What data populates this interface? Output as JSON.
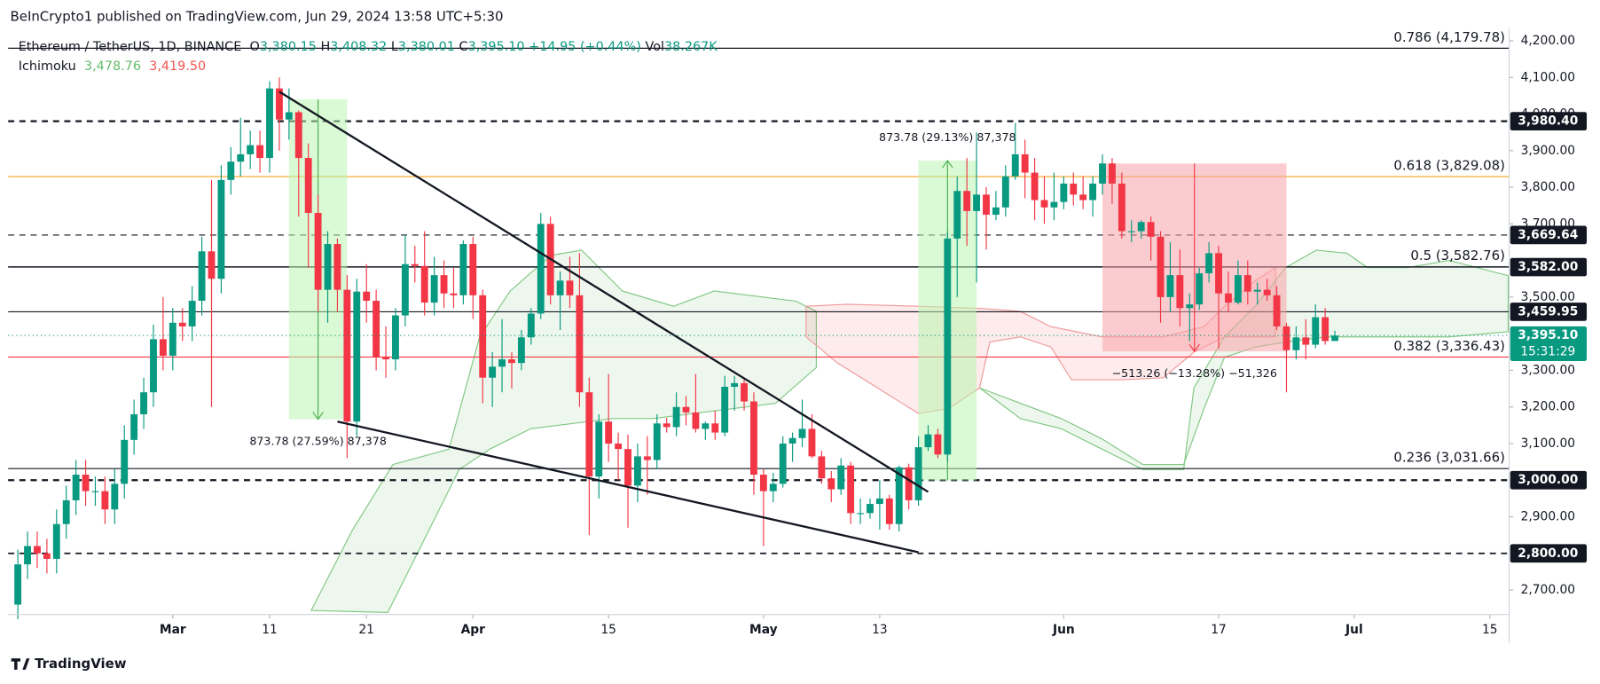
{
  "header": {
    "text": "BeInCrypto1 published on TradingView.com, Jun 29, 2024 13:58 UTC+5:30"
  },
  "footer": {
    "brand": "TradingView"
  },
  "legend": {
    "symbol": "Ethereum / TetherUS, 1D, BINANCE",
    "items": [
      {
        "key": "O",
        "value": "3,380.15"
      },
      {
        "key": "H",
        "value": "3,408.32"
      },
      {
        "key": "L",
        "value": "3,380.01"
      },
      {
        "key": "C",
        "value": "3,395.10"
      }
    ],
    "change": "+14.95 (+0.44%)",
    "vol_key": "Vol",
    "vol": "38.267K",
    "indicator": "Ichimoku",
    "indicator_values": [
      {
        "value": "3,478.76",
        "color": "#66bb6a"
      },
      {
        "value": "3,419.50",
        "color": "#ef5350"
      }
    ]
  },
  "chart_data": {
    "type": "candlestick",
    "up_color": "#089981",
    "down_color": "#f23645",
    "x": [
      "2024-02-14",
      "2024-02-15",
      "2024-02-16",
      "2024-02-17",
      "2024-02-18",
      "2024-02-19",
      "2024-02-20",
      "2024-02-21",
      "2024-02-22",
      "2024-02-23",
      "2024-02-24",
      "2024-02-25",
      "2024-02-26",
      "2024-02-27",
      "2024-02-28",
      "2024-02-29",
      "2024-03-01",
      "2024-03-02",
      "2024-03-03",
      "2024-03-04",
      "2024-03-05",
      "2024-03-06",
      "2024-03-07",
      "2024-03-08",
      "2024-03-09",
      "2024-03-10",
      "2024-03-11",
      "2024-03-12",
      "2024-03-13",
      "2024-03-14",
      "2024-03-15",
      "2024-03-16",
      "2024-03-17",
      "2024-03-18",
      "2024-03-19",
      "2024-03-20",
      "2024-03-21",
      "2024-03-22",
      "2024-03-23",
      "2024-03-24",
      "2024-03-25",
      "2024-03-26",
      "2024-03-27",
      "2024-03-28",
      "2024-03-29",
      "2024-03-30",
      "2024-03-31",
      "2024-04-01",
      "2024-04-02",
      "2024-04-03",
      "2024-04-04",
      "2024-04-05",
      "2024-04-06",
      "2024-04-07",
      "2024-04-08",
      "2024-04-09",
      "2024-04-10",
      "2024-04-11",
      "2024-04-12",
      "2024-04-13",
      "2024-04-14",
      "2024-04-15",
      "2024-04-16",
      "2024-04-17",
      "2024-04-18",
      "2024-04-19",
      "2024-04-20",
      "2024-04-21",
      "2024-04-22",
      "2024-04-23",
      "2024-04-24",
      "2024-04-25",
      "2024-04-26",
      "2024-04-27",
      "2024-04-28",
      "2024-04-29",
      "2024-04-30",
      "2024-05-01",
      "2024-05-02",
      "2024-05-03",
      "2024-05-04",
      "2024-05-05",
      "2024-05-06",
      "2024-05-07",
      "2024-05-08",
      "2024-05-09",
      "2024-05-10",
      "2024-05-11",
      "2024-05-12",
      "2024-05-13",
      "2024-05-14",
      "2024-05-15",
      "2024-05-16",
      "2024-05-17",
      "2024-05-18",
      "2024-05-19",
      "2024-05-20",
      "2024-05-21",
      "2024-05-22",
      "2024-05-23",
      "2024-05-24",
      "2024-05-25",
      "2024-05-26",
      "2024-05-27",
      "2024-05-28",
      "2024-05-29",
      "2024-05-30",
      "2024-05-31",
      "2024-06-01",
      "2024-06-02",
      "2024-06-03",
      "2024-06-04",
      "2024-06-05",
      "2024-06-06",
      "2024-06-07",
      "2024-06-08",
      "2024-06-09",
      "2024-06-10",
      "2024-06-11",
      "2024-06-12",
      "2024-06-13",
      "2024-06-14",
      "2024-06-15",
      "2024-06-16",
      "2024-06-17",
      "2024-06-18",
      "2024-06-19",
      "2024-06-20",
      "2024-06-21",
      "2024-06-22",
      "2024-06-23",
      "2024-06-24",
      "2024-06-25",
      "2024-06-26",
      "2024-06-27",
      "2024-06-28",
      "2024-06-29"
    ],
    "open": [
      2660,
      2770,
      2820,
      2800,
      2785,
      2880,
      2945,
      3015,
      2970,
      2970,
      2920,
      2990,
      3110,
      3180,
      3240,
      3385,
      3340,
      3430,
      3420,
      3490,
      3625,
      3550,
      3820,
      3870,
      3890,
      3915,
      3880,
      4070,
      3985,
      4005,
      3880,
      3730,
      3520,
      3645,
      3520,
      3160,
      3515,
      3490,
      3335,
      3330,
      3450,
      3590,
      3585,
      3485,
      3560,
      3510,
      3505,
      3645,
      3505,
      3280,
      3310,
      3330,
      3320,
      3390,
      3455,
      3700,
      3505,
      3545,
      3505,
      3240,
      3010,
      3160,
      3100,
      3085,
      2985,
      3065,
      3055,
      3155,
      3145,
      3200,
      3185,
      3140,
      3155,
      3130,
      3255,
      3265,
      3215,
      3015,
      2970,
      2990,
      3100,
      3115,
      3140,
      3065,
      3005,
      2975,
      3040,
      2910,
      2910,
      2935,
      2950,
      2880,
      3035,
      2945,
      3090,
      3125,
      3070,
      3660,
      3790,
      3735,
      3780,
      3725,
      3745,
      3830,
      3890,
      3840,
      3765,
      3745,
      3760,
      3810,
      3780,
      3765,
      3810,
      3865,
      3810,
      3680,
      3680,
      3705,
      3665,
      3500,
      3560,
      3470,
      3480,
      3565,
      3620,
      3510,
      3485,
      3560,
      3515,
      3520,
      3505,
      3420,
      3355,
      3390,
      3370,
      3445,
      3380.15
    ],
    "high": [
      2810,
      2860,
      2860,
      2840,
      2920,
      2985,
      3055,
      3055,
      3010,
      3010,
      3030,
      3150,
      3220,
      3280,
      3425,
      3500,
      3470,
      3470,
      3530,
      3665,
      3820,
      3860,
      3910,
      3990,
      3955,
      3955,
      4090,
      4100,
      4070,
      4010,
      3920,
      3780,
      3680,
      3660,
      3560,
      3550,
      3590,
      3520,
      3420,
      3470,
      3670,
      3640,
      3680,
      3610,
      3600,
      3580,
      3655,
      3665,
      3520,
      3350,
      3440,
      3350,
      3410,
      3470,
      3730,
      3720,
      3570,
      3610,
      3620,
      3280,
      3180,
      3290,
      3130,
      3125,
      3100,
      3120,
      3180,
      3170,
      3240,
      3230,
      3290,
      3160,
      3190,
      3285,
      3285,
      3275,
      3240,
      3030,
      3020,
      3120,
      3130,
      3220,
      3180,
      3080,
      3025,
      3060,
      3050,
      2950,
      2950,
      3000,
      2960,
      3040,
      3045,
      3120,
      3150,
      3140,
      3680,
      3830,
      3880,
      3950,
      3800,
      3790,
      3860,
      3975,
      3930,
      3880,
      3830,
      3840,
      3830,
      3840,
      3830,
      3830,
      3890,
      3880,
      3840,
      3710,
      3710,
      3720,
      3680,
      3650,
      3630,
      3510,
      3580,
      3650,
      3640,
      3570,
      3600,
      3600,
      3540,
      3550,
      3530,
      3430,
      3420,
      3440,
      3480,
      3470,
      3408.32
    ],
    "low": [
      2620,
      2730,
      2760,
      2745,
      2745,
      2840,
      2905,
      2930,
      2930,
      2880,
      2880,
      2950,
      3070,
      3140,
      3200,
      3300,
      3300,
      3380,
      3380,
      3450,
      3200,
      3510,
      3780,
      3830,
      3850,
      3840,
      3840,
      3900,
      3930,
      3720,
      3580,
      3460,
      3430,
      3460,
      3060,
      3120,
      3430,
      3300,
      3280,
      3300,
      3420,
      3540,
      3450,
      3450,
      3470,
      3470,
      3480,
      3440,
      3210,
      3200,
      3240,
      3250,
      3300,
      3370,
      3440,
      3480,
      3410,
      3470,
      3200,
      2850,
      2950,
      3050,
      3000,
      2870,
      2940,
      2960,
      3030,
      3130,
      3120,
      3150,
      3130,
      3110,
      3110,
      3120,
      3190,
      3190,
      2960,
      2820,
      2940,
      2980,
      3050,
      3090,
      3060,
      2990,
      2940,
      2960,
      2880,
      2880,
      2895,
      2865,
      2865,
      2860,
      2920,
      2930,
      3080,
      3060,
      3050,
      3500,
      3640,
      3540,
      3630,
      3710,
      3720,
      3820,
      3770,
      3710,
      3700,
      3710,
      3740,
      3750,
      3740,
      3720,
      3780,
      3755,
      3660,
      3650,
      3660,
      3600,
      3430,
      3460,
      3420,
      3380,
      3465,
      3540,
      3360,
      3460,
      3480,
      3480,
      3480,
      3490,
      3410,
      3240,
      3330,
      3330,
      3360,
      3370,
      3380.01
    ],
    "close": [
      2770,
      2820,
      2800,
      2785,
      2880,
      2945,
      3015,
      2970,
      2970,
      2920,
      2990,
      3110,
      3180,
      3240,
      3385,
      3340,
      3430,
      3420,
      3490,
      3625,
      3550,
      3820,
      3870,
      3890,
      3915,
      3880,
      4070,
      3985,
      4005,
      3880,
      3730,
      3520,
      3645,
      3520,
      3160,
      3515,
      3490,
      3335,
      3330,
      3450,
      3590,
      3585,
      3485,
      3560,
      3510,
      3505,
      3645,
      3505,
      3280,
      3310,
      3330,
      3320,
      3390,
      3455,
      3700,
      3505,
      3545,
      3505,
      3240,
      3010,
      3160,
      3100,
      3085,
      2985,
      3065,
      3055,
      3155,
      3145,
      3200,
      3185,
      3140,
      3155,
      3130,
      3255,
      3265,
      3215,
      3015,
      2970,
      2990,
      3100,
      3115,
      3140,
      3065,
      3005,
      2975,
      3040,
      2910,
      2910,
      2935,
      2950,
      2880,
      3035,
      2945,
      3090,
      3125,
      3070,
      3660,
      3790,
      3735,
      3780,
      3725,
      3745,
      3830,
      3890,
      3840,
      3765,
      3745,
      3760,
      3810,
      3780,
      3765,
      3810,
      3865,
      3810,
      3680,
      3680,
      3705,
      3665,
      3500,
      3560,
      3470,
      3480,
      3565,
      3620,
      3510,
      3485,
      3560,
      3515,
      3520,
      3505,
      3420,
      3355,
      3390,
      3370,
      3445,
      3380,
      3395.1
    ],
    "xlim": [
      "2024-02-13",
      "2024-07-17"
    ],
    "xticks": [
      {
        "value": "2024-03-01",
        "label": "Mar"
      },
      {
        "value": "2024-03-11",
        "label": "11"
      },
      {
        "value": "2024-03-21",
        "label": "21"
      },
      {
        "value": "2024-04-01",
        "label": "Apr"
      },
      {
        "value": "2024-04-15",
        "label": "15"
      },
      {
        "value": "2024-05-01",
        "label": "May"
      },
      {
        "value": "2024-05-13",
        "label": "13"
      },
      {
        "value": "2024-06-01",
        "label": "Jun"
      },
      {
        "value": "2024-06-17",
        "label": "17"
      },
      {
        "value": "2024-07-01",
        "label": "Jul"
      },
      {
        "value": "2024-07-15",
        "label": "15"
      }
    ],
    "ylim": [
      2633,
      4250
    ],
    "yticks": [
      {
        "value": 2700,
        "label": "2,700.00"
      },
      {
        "value": 2900,
        "label": "2,900.00"
      },
      {
        "value": 3100,
        "label": "3,100.00"
      },
      {
        "value": 3200,
        "label": "3,200.00"
      },
      {
        "value": 3300,
        "label": "3,300.00"
      },
      {
        "value": 3500,
        "label": "3,500.00"
      },
      {
        "value": 3700,
        "label": "3,700.00"
      },
      {
        "value": 3800,
        "label": "3,800.00"
      },
      {
        "value": 3900,
        "label": "3,900.00"
      },
      {
        "value": 4000,
        "label": "4,000.00"
      },
      {
        "value": 4100,
        "label": "4,100.00"
      },
      {
        "value": 4200,
        "label": "4,200.00"
      }
    ],
    "levels": [
      {
        "value": 3980.4,
        "label": "3,980.40",
        "style": "dashed",
        "width": 2
      },
      {
        "value": 3669.64,
        "label": "3,669.64",
        "style": "dashed",
        "width": 1
      },
      {
        "value": 3582,
        "label": "3,582.00",
        "style": "solid",
        "width": 1
      },
      {
        "value": 3459.95,
        "label": "3,459.95",
        "style": "solid",
        "width": 1
      },
      {
        "value": 3000,
        "label": "3,000.00",
        "style": "dashed",
        "width": 2
      },
      {
        "value": 2800,
        "label": "2,800.00",
        "style": "dashed",
        "width": 1.5
      }
    ],
    "fib_levels": [
      {
        "value": 4179.78,
        "label": "0.786 (4,179.78)",
        "color": "#131722"
      },
      {
        "value": 3829.08,
        "label": "0.618 (3,829.08)",
        "color": "#f7a21b"
      },
      {
        "value": 3582.76,
        "label": "0.5 (3,582.76)",
        "color": "#131722"
      },
      {
        "value": 3336.43,
        "label": "0.382 (3,336.43)",
        "color": "#f23645"
      },
      {
        "value": 3031.66,
        "label": "0.236 (3,031.66)",
        "color": "#131722"
      }
    ],
    "last_price": {
      "value": 3395.1,
      "label": "3,395.10",
      "countdown": "15:31:29",
      "color": "#089981"
    },
    "trendlines": [
      {
        "from": [
          "2024-03-12",
          4061
        ],
        "to": [
          "2024-05-18",
          2968
        ]
      },
      {
        "from": [
          "2024-03-18",
          3160
        ],
        "to": [
          "2024-05-17",
          2803
        ]
      }
    ],
    "measures": [
      {
        "from": [
          "2024-03-13",
          4040
        ],
        "to": [
          "2024-03-19",
          3166.22
        ],
        "label": "873.78 (27.59%) 87,378",
        "color": "#4caf50",
        "fill": "#b9f6b0"
      },
      {
        "from": [
          "2024-05-17",
          2999.22
        ],
        "to": [
          "2024-05-23",
          3873
        ],
        "label": "873.78 (29.13%) 87,378",
        "color": "#4caf50",
        "fill": "#b9f6b0"
      },
      {
        "from": [
          "2024-06-05",
          3865
        ],
        "to": [
          "2024-06-24",
          3351.74
        ],
        "label": "−513.26 (−13.28%) −51,326",
        "color": "#f23645",
        "fill": "#f7a3a8"
      }
    ]
  }
}
